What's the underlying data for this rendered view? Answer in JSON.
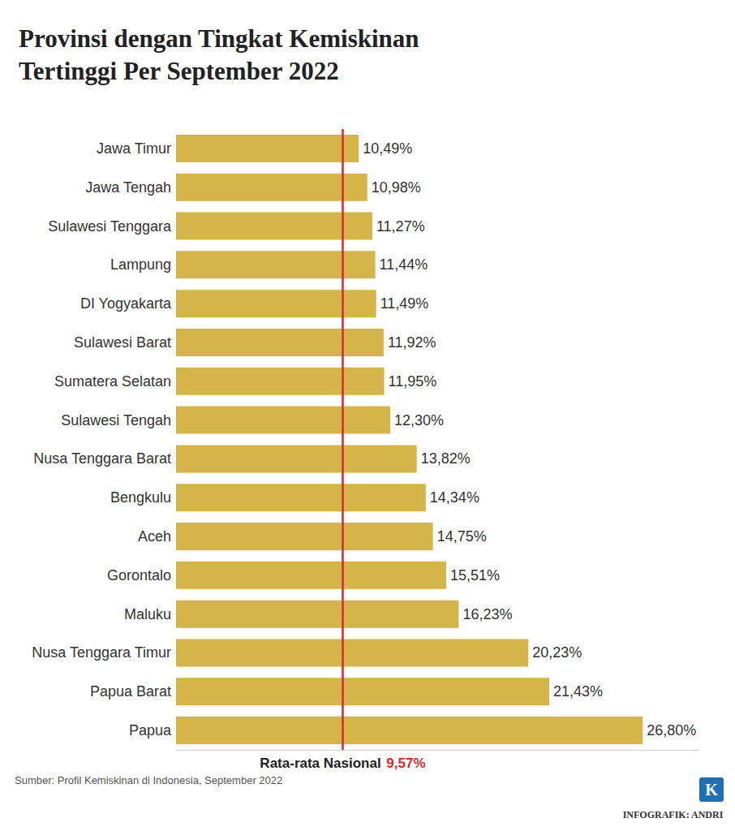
{
  "chart_data": {
    "type": "bar",
    "orientation": "horizontal",
    "title": "Provinsi dengan Tingkat Kemiskinan Tertinggi Per September 2022",
    "categories": [
      "Jawa Timur",
      "Jawa Tengah",
      "Sulawesi Tenggara",
      "Lampung",
      "DI Yogyakarta",
      "Sulawesi Barat",
      "Sumatera Selatan",
      "Sulawesi Tengah",
      "Nusa Tenggara Barat",
      "Bengkulu",
      "Aceh",
      "Gorontalo",
      "Maluku",
      "Nusa Tenggara Timur",
      "Papua Barat",
      "Papua"
    ],
    "values": [
      10.49,
      10.98,
      11.27,
      11.44,
      11.49,
      11.92,
      11.95,
      12.3,
      13.82,
      14.34,
      14.75,
      15.51,
      16.23,
      20.23,
      21.43,
      26.8
    ],
    "value_labels": [
      "10,49%",
      "10,98%",
      "11,27%",
      "11,44%",
      "11,49%",
      "11,92%",
      "11,95%",
      "12,30%",
      "13,82%",
      "14,34%",
      "14,75%",
      "15,51%",
      "16,23%",
      "20,23%",
      "21,43%",
      "26,80%"
    ],
    "data_labels": true,
    "color": "#d6b548",
    "xlim": [
      0,
      30
    ],
    "xticks": [],
    "grid": false,
    "tick_labels": "y",
    "reference_line": {
      "label": "Rata-rata Nasional",
      "value": 9.57,
      "value_label": "9,57%",
      "color": "#d7282f"
    },
    "source": "Sumber: Profil Kemiskinan di Indonesia, September 2022",
    "credit": "INFOGRAFIK: ANDRI",
    "logo": "K"
  }
}
